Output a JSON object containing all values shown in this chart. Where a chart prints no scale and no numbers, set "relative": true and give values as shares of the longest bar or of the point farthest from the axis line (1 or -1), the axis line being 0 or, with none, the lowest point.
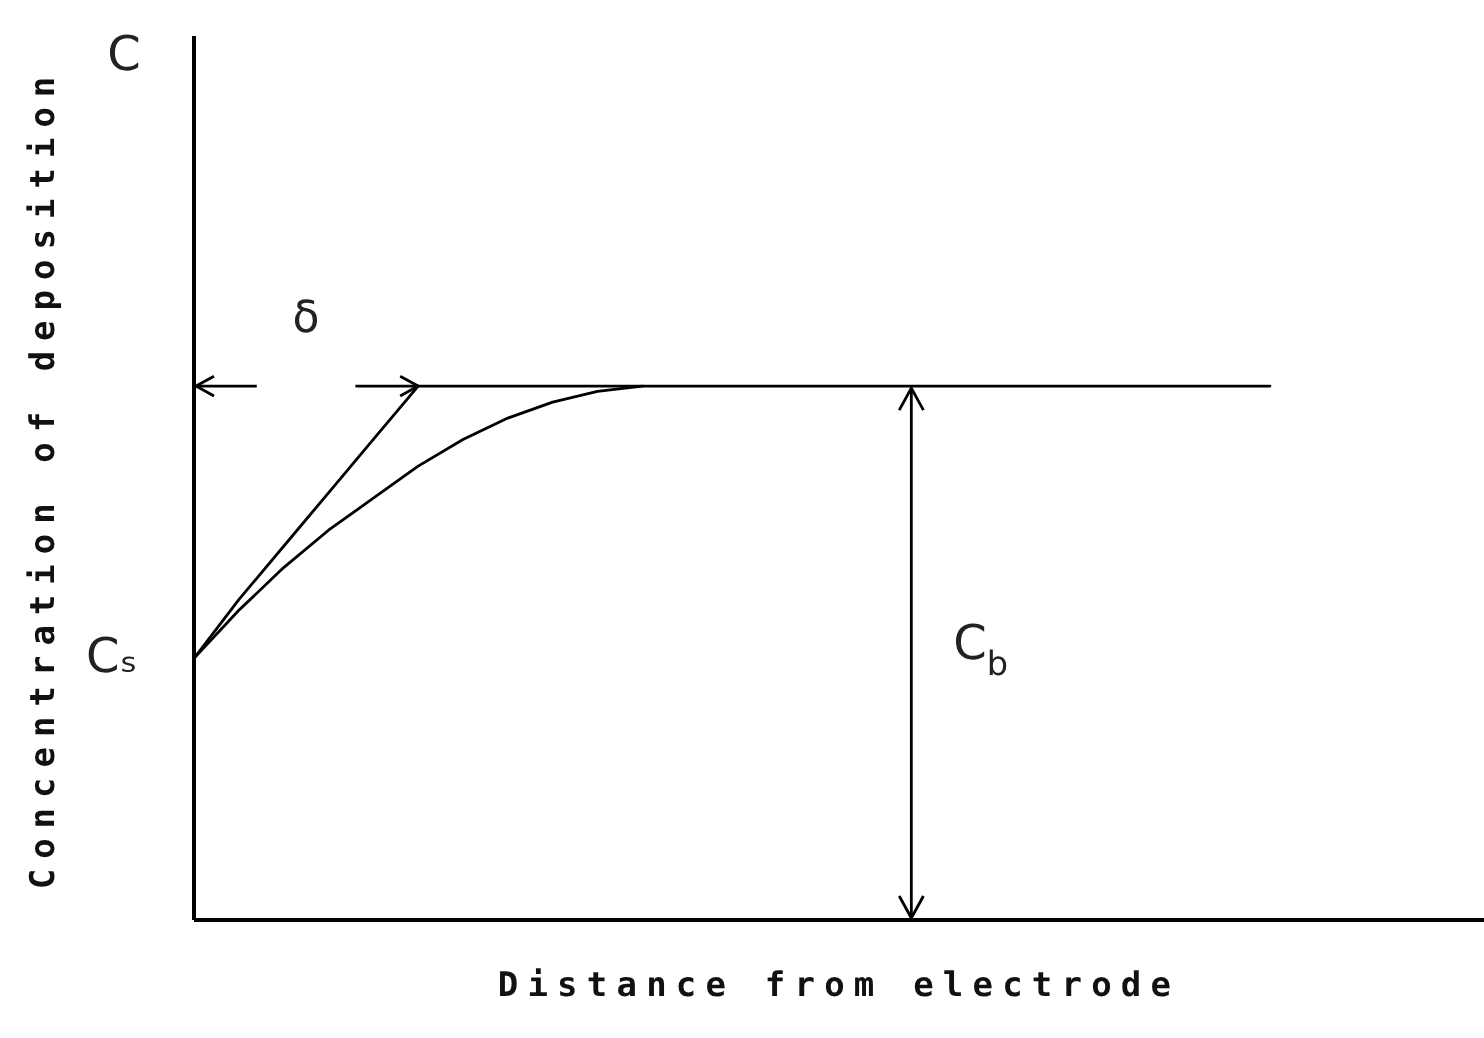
{
  "chart_data": {
    "type": "line",
    "relative": true,
    "xlabel": "Distance from electrode",
    "ylabel": "Concentration of deposition",
    "categories": [
      null,
      null,
      null,
      null,
      null,
      null,
      null,
      null,
      null,
      null,
      null,
      null,
      null,
      null,
      null,
      null,
      null,
      null,
      null,
      null,
      null,
      null,
      null,
      null,
      null
    ],
    "series": [
      {
        "color": "#000000",
        "values": [
          0.49,
          0.58,
          0.66,
          0.73,
          0.79,
          0.85,
          0.9,
          0.94,
          0.97,
          0.99,
          1,
          null,
          null,
          null,
          null,
          null,
          null,
          null,
          null,
          null,
          null,
          null,
          null,
          null,
          null
        ]
      },
      {
        "color": "#000000",
        "values": [
          0.49,
          0.6,
          0.7,
          0.8,
          0.9,
          1,
          1,
          1,
          1,
          1,
          1,
          1,
          1,
          1,
          1,
          1,
          1,
          1,
          1,
          1,
          1,
          1,
          1,
          1,
          1
        ]
      }
    ],
    "annotations": [
      "C",
      "δ",
      "Cₛ",
      "C$_{b}$"
    ]
  }
}
